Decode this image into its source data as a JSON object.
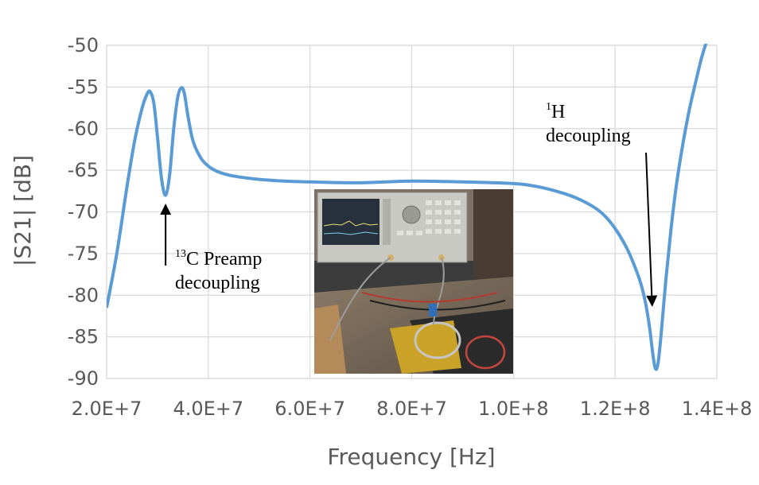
{
  "chart_data": {
    "type": "line",
    "title": "",
    "xlabel": "Frequency [Hz]",
    "ylabel": "|S21| [dB]",
    "xlim": [
      20000000,
      140000000
    ],
    "ylim": [
      -90,
      -50
    ],
    "x_tick_values": [
      20000000,
      40000000,
      60000000,
      80000000,
      100000000,
      120000000,
      140000000
    ],
    "x_tick_labels": [
      "2.0E+7",
      "4.0E+7",
      "6.0E+7",
      "8.0E+7",
      "1.0E+8",
      "1.2E+8",
      "1.4E+8"
    ],
    "y_tick_values": [
      -50,
      -55,
      -60,
      -65,
      -70,
      -75,
      -80,
      -85,
      -90
    ],
    "y_tick_labels": [
      "-50",
      "-55",
      "-60",
      "-65",
      "-70",
      "-75",
      "-80",
      "-85",
      "-90"
    ],
    "grid": true,
    "series": [
      {
        "name": "|S21|",
        "color": "#5b9bd5",
        "x": [
          20000000,
          22000000,
          24000000,
          25500000,
          27000000,
          28000000,
          28600000,
          29300000,
          30000000,
          30800000,
          31600000,
          32400000,
          33200000,
          34000000,
          34700000,
          35300000,
          36000000,
          37000000,
          38500000,
          40000000,
          42000000,
          45000000,
          50000000,
          55000000,
          60000000,
          70000000,
          80000000,
          90000000,
          100000000,
          105000000,
          110000000,
          113000000,
          116000000,
          118000000,
          120000000,
          122000000,
          123500000,
          125000000,
          126000000,
          126800000,
          127400000,
          127900000,
          128400000,
          129000000,
          130000000,
          131000000,
          132000000,
          133000000,
          134500000,
          136000000,
          137000000,
          138000000
        ],
        "values": [
          -81.5,
          -75,
          -67,
          -61.5,
          -57.5,
          -55.8,
          -55.6,
          -57,
          -61,
          -66,
          -68,
          -65.5,
          -60,
          -56.2,
          -55.1,
          -55.8,
          -58.5,
          -61.5,
          -63.5,
          -64.5,
          -65.2,
          -65.7,
          -66.1,
          -66.3,
          -66.4,
          -66.5,
          -66.3,
          -66.4,
          -66.6,
          -67,
          -67.8,
          -68.5,
          -69.5,
          -70.5,
          -72,
          -74,
          -76,
          -78.5,
          -81,
          -84,
          -87,
          -88.8,
          -88.3,
          -85,
          -78,
          -72,
          -67,
          -63,
          -58,
          -54,
          -51.5,
          -49.5
        ]
      }
    ],
    "annotations": [
      {
        "sup": "13",
        "lines": [
          "C Preamp",
          "decoupling"
        ],
        "target_x": 31600000,
        "target_y": -68
      },
      {
        "sup": "1",
        "lines": [
          "H",
          "decoupling"
        ],
        "target_x": 127600000,
        "target_y": -84.5
      }
    ],
    "inset": {
      "description_icon": "photo-icon",
      "caption": ""
    }
  }
}
